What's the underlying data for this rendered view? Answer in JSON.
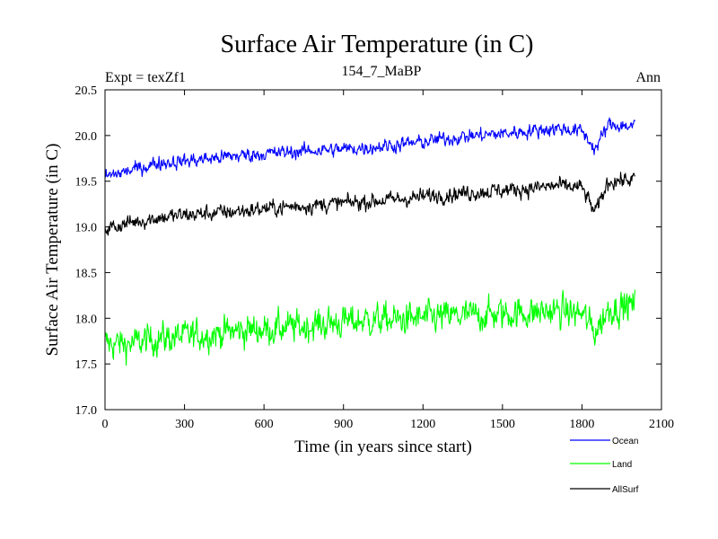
{
  "chart_data": {
    "type": "line",
    "title": "Surface Air Temperature (in C)",
    "experiment_label": "Expt = texZf1",
    "subtitle": "154_7_MaBP",
    "season_label": "Ann",
    "xlabel": "Time (in years since start)",
    "ylabel": "Surface Air Temperature (in C)",
    "xlim": [
      0,
      2100
    ],
    "ylim": [
      17.0,
      20.5
    ],
    "x_ticks": [
      0,
      300,
      600,
      900,
      1200,
      1500,
      1800,
      2100
    ],
    "y_ticks": [
      17.0,
      17.5,
      18.0,
      18.5,
      19.0,
      19.5,
      20.0,
      20.5
    ],
    "x_tick_labels": [
      "0",
      "300",
      "600",
      "900",
      "1200",
      "1500",
      "1800",
      "2100"
    ],
    "y_tick_labels": [
      "17.0",
      "17.5",
      "18.0",
      "18.5",
      "19.0",
      "19.5",
      "20.0",
      "20.5"
    ],
    "legend_position": "bottom-right, outside plot",
    "series": [
      {
        "name": "Ocean",
        "color": "#0000ff",
        "x": [
          0,
          100,
          200,
          300,
          400,
          500,
          600,
          700,
          800,
          900,
          1000,
          1100,
          1200,
          1300,
          1400,
          1500,
          1600,
          1700,
          1800,
          1850,
          1900,
          2000
        ],
        "values": [
          19.55,
          19.62,
          19.7,
          19.72,
          19.75,
          19.78,
          19.8,
          19.82,
          19.84,
          19.85,
          19.87,
          19.9,
          19.93,
          19.97,
          20.0,
          20.02,
          20.05,
          20.08,
          20.05,
          19.85,
          20.12,
          20.1
        ]
      },
      {
        "name": "Land",
        "color": "#00ff00",
        "x": [
          0,
          100,
          200,
          300,
          400,
          500,
          600,
          700,
          800,
          900,
          1000,
          1100,
          1200,
          1300,
          1400,
          1500,
          1600,
          1700,
          1800,
          1850,
          1900,
          2000
        ],
        "values": [
          17.72,
          17.72,
          17.78,
          17.8,
          17.83,
          17.86,
          17.88,
          17.9,
          17.93,
          17.96,
          17.98,
          17.98,
          18.0,
          18.02,
          18.03,
          18.05,
          18.06,
          18.08,
          18.05,
          17.85,
          18.1,
          18.15
        ]
      },
      {
        "name": "AllSurf",
        "color": "#000000",
        "x": [
          0,
          100,
          200,
          300,
          400,
          500,
          600,
          700,
          800,
          900,
          1000,
          1100,
          1200,
          1300,
          1400,
          1500,
          1600,
          1700,
          1800,
          1850,
          1900,
          2000
        ],
        "values": [
          18.98,
          19.05,
          19.1,
          19.13,
          19.15,
          19.17,
          19.2,
          19.22,
          19.24,
          19.26,
          19.28,
          19.3,
          19.33,
          19.36,
          19.38,
          19.4,
          19.42,
          19.45,
          19.43,
          19.15,
          19.5,
          19.52
        ]
      }
    ]
  }
}
